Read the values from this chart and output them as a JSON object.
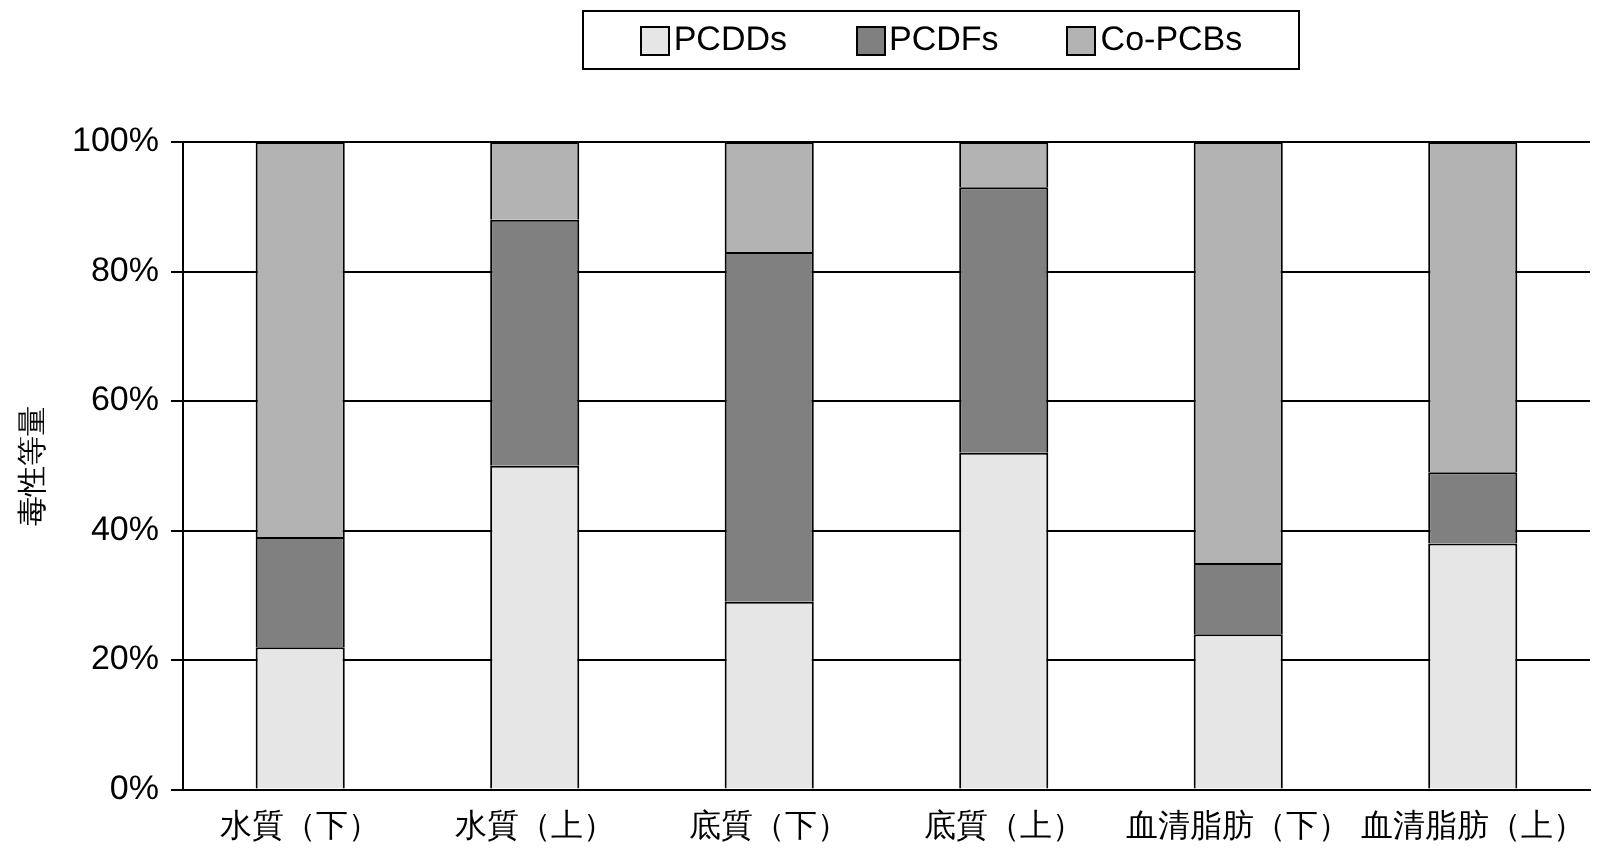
{
  "chart_data": {
    "type": "bar",
    "stacked": true,
    "ylabel": "毒性等量",
    "categories": [
      "水質（下）",
      "水質（上）",
      "底質（下）",
      "底質（上）",
      "血清脂肪（下）",
      "血清脂肪（上）"
    ],
    "series": [
      {
        "name": "PCDDs",
        "color": "#e6e6e6",
        "values": [
          22,
          50,
          29,
          52,
          24,
          38
        ]
      },
      {
        "name": "PCDFs",
        "color": "#808080",
        "values": [
          17,
          38,
          54,
          41,
          11,
          11
        ]
      },
      {
        "name": "Co-PCBs",
        "color": "#b3b3b3",
        "values": [
          61,
          12,
          17,
          7,
          65,
          51
        ]
      }
    ],
    "ylim": [
      0,
      100
    ],
    "yticks": [
      {
        "value": 0,
        "label": "0%"
      },
      {
        "value": 20,
        "label": "20%"
      },
      {
        "value": 40,
        "label": "40%"
      },
      {
        "value": 60,
        "label": "60%"
      },
      {
        "value": 80,
        "label": "80%"
      },
      {
        "value": 100,
        "label": "100%"
      }
    ],
    "grid": "y",
    "legend": "top"
  }
}
